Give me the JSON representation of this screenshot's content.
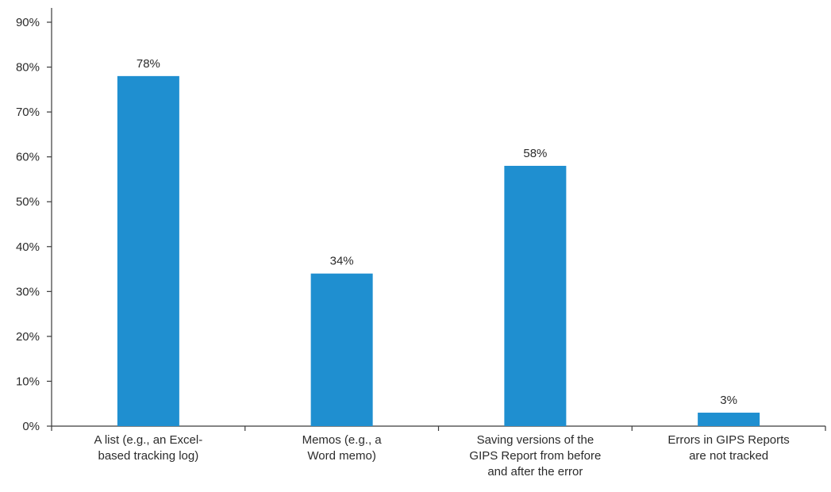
{
  "chart_data": {
    "type": "bar",
    "title": "",
    "xlabel": "",
    "ylabel": "",
    "ylim": [
      0,
      90
    ],
    "yticks": [
      0,
      10,
      20,
      30,
      40,
      50,
      60,
      70,
      80,
      90
    ],
    "ytick_labels": [
      "0%",
      "10%",
      "20%",
      "30%",
      "40%",
      "50%",
      "60%",
      "70%",
      "80%",
      "90%"
    ],
    "grid": false,
    "bar_color": "#1f8fd0",
    "categories": [
      [
        "A list (e.g., an Excel-",
        "based tracking log)"
      ],
      [
        "Memos (e.g., a",
        "Word memo)"
      ],
      [
        "Saving versions of the",
        "GIPS Report from before",
        "and after the error"
      ],
      [
        "Errors in GIPS Reports",
        "are not tracked"
      ]
    ],
    "values": [
      78,
      34,
      58,
      3
    ],
    "data_labels": [
      "78%",
      "34%",
      "58%",
      "3%"
    ]
  }
}
